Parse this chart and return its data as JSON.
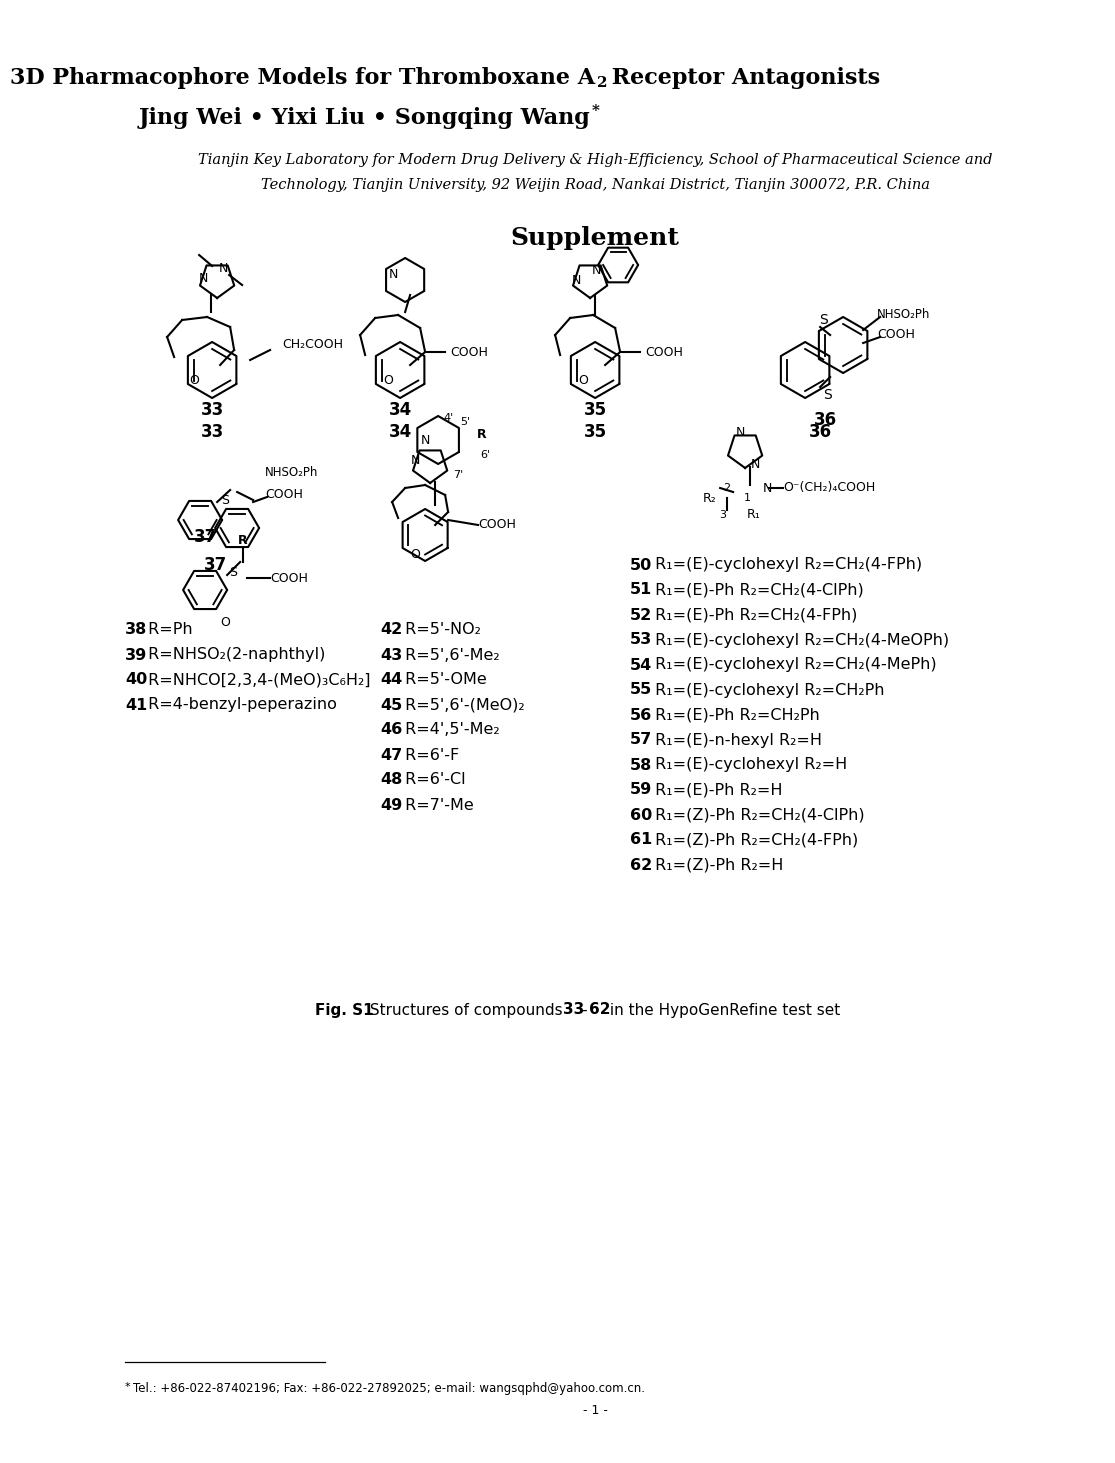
{
  "bg": "#ffffff",
  "black": "#000000",
  "title1": "3D Pharmacophore Models for Thromboxane A",
  "title1_sub": "2",
  "title1_end": " Receptor Antagonists",
  "authors": "Jing Wei • Yixi Liu • Songqing Wang",
  "aff1": "Tianjin Key Laboratory for Modern Drug Delivery & High-Efficiency, School of Pharmaceutical Science and",
  "aff2": "Technology, Tianjin University, 92 Weijin Road, Nankai District, Tianjin 300072, P.R. China",
  "supplement": "Supplement",
  "fig_caption_bold": "Fig. S1",
  "fig_caption_rest": " Structures of compounds ",
  "fig_caption_bold2": "33",
  "fig_caption_rest2": "–",
  "fig_caption_bold3": "62",
  "fig_caption_rest3": " in the HypoGenRefine test set",
  "footnote": "*Tel.: +86-022-87402196; Fax: +86-022-27892025; e-mail: wangsqphd@yahoo.com.cn.",
  "page": "- 1 -",
  "left_texts": [
    [
      40,
      620,
      "38",
      " R=Ph"
    ],
    [
      40,
      645,
      "39",
      " R=NHSO₂(2-naphthyl)"
    ],
    [
      40,
      670,
      "40",
      " R=NHCO[2,3,4-(MeO)₃C₆H₂]"
    ],
    [
      40,
      695,
      "41",
      " R=4-benzyl-peperazino"
    ]
  ],
  "mid_texts": [
    [
      295,
      620,
      "42",
      " R=5'-NO₂"
    ],
    [
      295,
      645,
      "43",
      " R=5',6'-Me₂"
    ],
    [
      295,
      670,
      "44",
      " R=5'-OMe"
    ],
    [
      295,
      695,
      "45",
      " R=5',6'-(MeO)₂"
    ],
    [
      295,
      720,
      "46",
      " R=4',5'-Me₂"
    ],
    [
      295,
      745,
      "47",
      " R=6'-F"
    ],
    [
      295,
      770,
      "48",
      " R=6'-Cl"
    ],
    [
      295,
      795,
      "49",
      " R=7'-Me"
    ]
  ],
  "right_texts": [
    [
      545,
      555,
      "50",
      " R₁=(E)-cyclohexyl R₂=CH₂(4-FPh)"
    ],
    [
      545,
      580,
      "51",
      " R₁=(E)-Ph R₂=CH₂(4-ClPh)"
    ],
    [
      545,
      605,
      "52",
      " R₁=(E)-Ph R₂=CH₂(4-FPh)"
    ],
    [
      545,
      630,
      "53",
      " R₁=(E)-cyclohexyl R₂=CH₂(4-MeOPh)"
    ],
    [
      545,
      655,
      "54",
      " R₁=(E)-cyclohexyl R₂=CH₂(4-MePh)"
    ],
    [
      545,
      680,
      "55",
      " R₁=(E)-cyclohexyl R₂=CH₂Ph"
    ],
    [
      545,
      705,
      "56",
      " R₁=(E)-Ph R₂=CH₂Ph"
    ],
    [
      545,
      730,
      "57",
      " R₁=(E)-n-hexyl R₂=H"
    ],
    [
      545,
      755,
      "58",
      " R₁=(E)-cyclohexyl R₂=H"
    ],
    [
      545,
      780,
      "59",
      " R₁=(E)-Ph R₂=H"
    ],
    [
      545,
      805,
      "60",
      " R₁=(Z)-Ph R₂=CH₂(4-ClPh)"
    ],
    [
      545,
      830,
      "61",
      " R₁=(Z)-Ph R₂=CH₂(4-FPh)"
    ],
    [
      545,
      855,
      "62",
      " R₁=(Z)-Ph R₂=H"
    ]
  ],
  "comp_labels": [
    [
      127,
      422,
      "33"
    ],
    [
      315,
      422,
      "34"
    ],
    [
      510,
      422,
      "35"
    ],
    [
      735,
      422,
      "36"
    ],
    [
      120,
      527,
      "37"
    ]
  ]
}
